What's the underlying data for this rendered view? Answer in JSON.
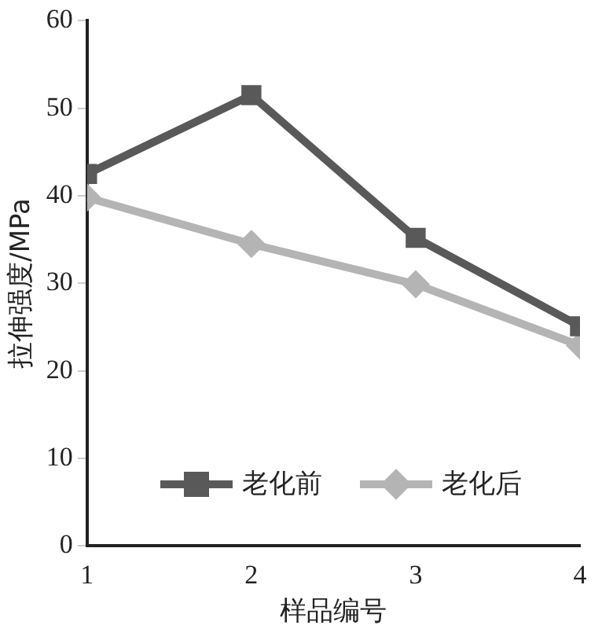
{
  "chart_data": {
    "type": "line",
    "xlabel": "样品编号",
    "ylabel": "拉伸强度/MPa",
    "x": [
      1,
      2,
      3,
      4
    ],
    "xlim": [
      1,
      4
    ],
    "xticks": [
      1,
      2,
      3,
      4
    ],
    "ylim": [
      0,
      60
    ],
    "yticks": [
      0,
      10,
      20,
      30,
      40,
      50,
      60
    ],
    "grid": false,
    "legend": "bottom",
    "line_style": "solid",
    "series": [
      {
        "name": "老化前",
        "color": "#595959",
        "marker": "square",
        "values": [
          42.5,
          51.5,
          35.2,
          25.1
        ]
      },
      {
        "name": "老化后",
        "color": "#b4b4b4",
        "marker": "diamond",
        "values": [
          39.8,
          34.5,
          29.9,
          22.9
        ]
      }
    ]
  }
}
